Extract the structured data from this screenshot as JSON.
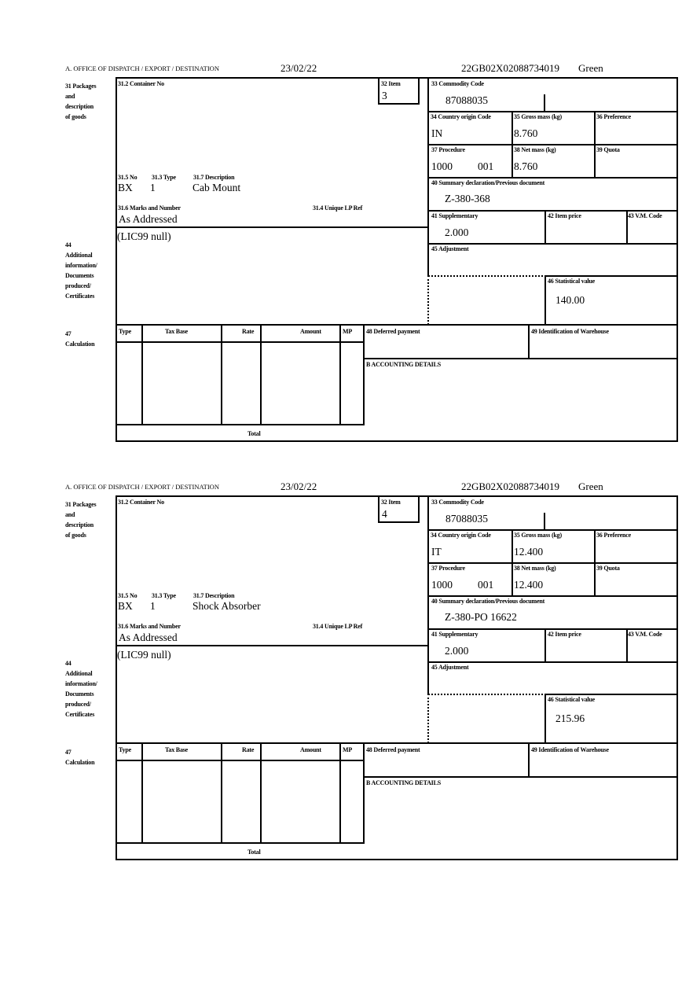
{
  "labels": {
    "office": "A. OFFICE OF DISPATCH / EXPORT / DESTINATION",
    "packages": "31 Packages\nand\ndescription\nof goods",
    "container": "31.2 Container No",
    "item": "32 Item",
    "commodity": "33 Commodity Code",
    "country": "34 Country origin Code",
    "gross": "35 Gross mass (kg)",
    "preference": "36 Preference",
    "procedure": "37 Procedure",
    "net": "38 Net mass (kg)",
    "quota": "39 Quota",
    "summary": "40 Summary declaration/Previous document",
    "supplementary": "41 Supplementary",
    "item_price": "42 Item price",
    "vm_code": "43 V.M. Code",
    "adjustment": "45 Adjustment",
    "statistical": "46 Statistical value",
    "no": "31.5 No",
    "type": "31.3 Type",
    "description": "31.7 Description",
    "marks": "31.6 Marks and Number",
    "unique_ref": "31.4 Unique LP Ref",
    "additional": "44\nAdditional\ninformation/\nDocuments\nproduced/\nCertificates",
    "calculation": "47\nCalculation",
    "col_type": "Type",
    "col_tax_base": "Tax Base",
    "col_rate": "Rate",
    "col_amount": "Amount",
    "col_mp": "MP",
    "deferred": "48 Deferred payment",
    "warehouse": "49 Identification of Warehouse",
    "accounting": "B ACCOUNTING DETAILS",
    "total": "Total"
  },
  "items": [
    {
      "date": "23/02/22",
      "mrn": "22GB02X02088734019",
      "route": "Green",
      "item_no": "3",
      "commodity_code": "87088035",
      "country": "IN",
      "gross_mass": "8.760",
      "procedure": "1000",
      "procedure_add": "001",
      "net_mass": "8.760",
      "summary_doc": "Z-380-368",
      "supplementary": "2.000",
      "statistical_value": "140.00",
      "pkg_no": "BX",
      "pkg_type": "1",
      "description": "Cab Mount",
      "marks": "As Addressed",
      "additional_info": "(LIC99 null)"
    },
    {
      "date": "23/02/22",
      "mrn": "22GB02X02088734019",
      "route": "Green",
      "item_no": "4",
      "commodity_code": "87088035",
      "country": "IT",
      "gross_mass": "12.400",
      "procedure": "1000",
      "procedure_add": "001",
      "net_mass": "12.400",
      "summary_doc": "Z-380-PO 16622",
      "supplementary": "2.000",
      "statistical_value": "215.96",
      "pkg_no": "BX",
      "pkg_type": "1",
      "description": "Shock Absorber",
      "marks": "As Addressed",
      "additional_info": "(LIC99 null)"
    }
  ]
}
